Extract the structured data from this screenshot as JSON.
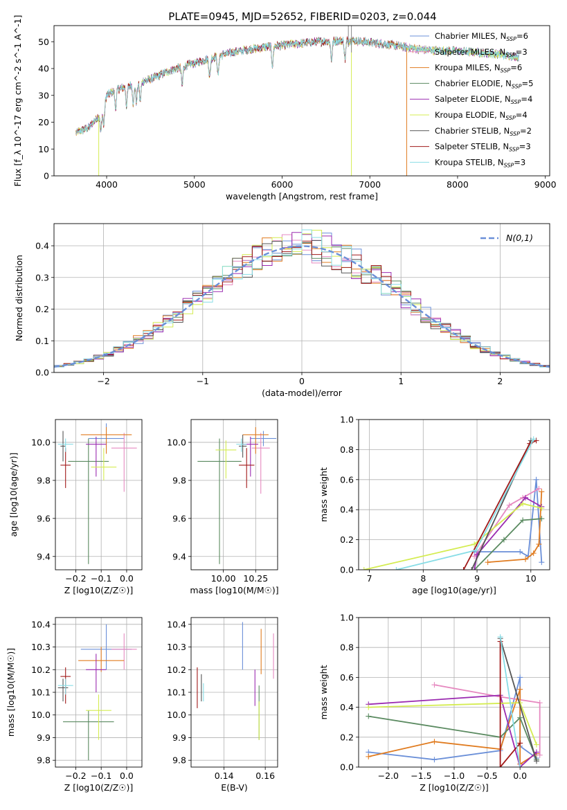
{
  "title": "PLATE=0945, MJD=52652, FIBERID=0203, z=0.044",
  "colors": {
    "chabrier_miles": "#6a8fd8",
    "salpeter_miles": "#e689c0",
    "kroupa_miles": "#e07b1f",
    "chabrier_elodie": "#5a8a60",
    "salpeter_elodie": "#9a2ab0",
    "kroupa_elodie": "#d4ec50",
    "chabrier_stelib": "#555555",
    "salpeter_stelib": "#a01818",
    "kroupa_stelib": "#88dde6",
    "gaussian": "#6a8fd8",
    "grid": "#b0b0b0"
  },
  "legend_labels": [
    "Chabrier MILES, N_SSP=6",
    "Salpeter MILES, N_SSP=3",
    "Kroupa MILES, N_SSP=6",
    "Chabrier ELODIE, N_SSP=5",
    "Salpeter ELODIE, N_SSP=4",
    "Kroupa ELODIE, N_SSP=4",
    "Chabrier STELIB, N_SSP=2",
    "Salpeter STELIB, N_SSP=3",
    "Kroupa STELIB, N_SSP=3"
  ],
  "chart_data": [
    {
      "id": "spectrum",
      "type": "line",
      "xlabel": "wavelength [Angstrom, rest frame]",
      "ylabel": "Flux [f_λ 10^-17 erg cm^-2 s^-1 A^-1]",
      "xlim": [
        3400,
        9050
      ],
      "ylim": [
        0,
        56
      ],
      "xticks": [
        4000,
        5000,
        6000,
        7000,
        8000,
        9000
      ],
      "yticks": [
        0,
        10,
        20,
        30,
        40,
        50
      ],
      "continuum": [
        [
          3650,
          16
        ],
        [
          3800,
          18
        ],
        [
          3950,
          24
        ],
        [
          4000,
          30
        ],
        [
          4100,
          32
        ],
        [
          4300,
          34
        ],
        [
          4500,
          36
        ],
        [
          4700,
          39
        ],
        [
          4900,
          41
        ],
        [
          5100,
          43
        ],
        [
          5300,
          45
        ],
        [
          5500,
          46.5
        ],
        [
          5800,
          48
        ],
        [
          6100,
          49
        ],
        [
          6400,
          50
        ],
        [
          6800,
          50.5
        ],
        [
          7200,
          49
        ],
        [
          7600,
          47
        ],
        [
          8000,
          46.5
        ],
        [
          8400,
          45.5
        ],
        [
          8800,
          44
        ]
      ],
      "model_ranges": [
        [
          3650,
          8700
        ],
        [
          3650,
          8700
        ],
        [
          3650,
          8700
        ],
        [
          3650,
          8700
        ],
        [
          3650,
          8700
        ],
        [
          3650,
          8700
        ],
        [
          3650,
          8700
        ],
        [
          3650,
          7420
        ],
        [
          3650,
          8700
        ]
      ],
      "dropouts": [
        {
          "x": 3910,
          "series": 5
        },
        {
          "x": 6790,
          "series": 5
        },
        {
          "x": 7420,
          "series": 2
        }
      ]
    },
    {
      "id": "residuals",
      "type": "histogram",
      "xlabel": "(data-model)/error",
      "ylabel": "Normed distribution",
      "xlim": [
        -2.5,
        2.5
      ],
      "ylim": [
        0,
        0.47
      ],
      "xticks": [
        -2,
        -1,
        0,
        1,
        2
      ],
      "yticks": [
        0.0,
        0.1,
        0.2,
        0.3,
        0.4
      ],
      "bin_width": 0.1,
      "legend": "N(0,1)",
      "grid": true
    },
    {
      "id": "age-vs-Z",
      "type": "errorbar",
      "xlabel": "Z [log10(Z/Z☉)]",
      "ylabel": "age [log10(age/yr)]",
      "xlim": [
        -0.28,
        0.06
      ],
      "ylim": [
        9.33,
        10.12
      ],
      "xticks": [
        -0.2,
        -0.1,
        0.0
      ],
      "yticks": [
        9.4,
        9.6,
        9.8,
        10.0
      ],
      "points": [
        {
          "x": -0.08,
          "y": 10.02,
          "xerr": 0.07,
          "yerr": [
            0.06,
            0.08
          ]
        },
        {
          "x": -0.01,
          "y": 9.97,
          "xerr": 0.05,
          "yerr": [
            0.23,
            0.08
          ]
        },
        {
          "x": -0.08,
          "y": 10.04,
          "xerr": 0.1,
          "yerr": [
            0.1,
            0.04
          ]
        },
        {
          "x": -0.15,
          "y": 9.9,
          "xerr": 0.08,
          "yerr": [
            0.54,
            0.12
          ]
        },
        {
          "x": -0.12,
          "y": 9.99,
          "xerr": 0.04,
          "yerr": [
            0.17,
            0.04
          ]
        },
        {
          "x": -0.09,
          "y": 9.87,
          "xerr": 0.05,
          "yerr": [
            0.07,
            0.1
          ]
        },
        {
          "x": -0.25,
          "y": 9.98,
          "xerr": 0.01,
          "yerr": [
            0.08,
            0.08
          ]
        },
        {
          "x": -0.24,
          "y": 9.88,
          "xerr": 0.02,
          "yerr": [
            0.12,
            0.09
          ]
        },
        {
          "x": -0.24,
          "y": 9.99,
          "xerr": 0.03,
          "yerr": [
            0.04,
            0.03
          ]
        }
      ]
    },
    {
      "id": "age-vs-mass",
      "type": "errorbar",
      "xlabel": "mass [log10(M/M☉)]",
      "ylabel": "",
      "xlim": [
        9.75,
        10.42
      ],
      "ylim": [
        9.33,
        10.12
      ],
      "xticks": [
        10.0,
        10.25
      ],
      "yticks": [
        9.4,
        9.6,
        9.8,
        10.0
      ],
      "points": [
        {
          "x": 10.31,
          "y": 10.02,
          "xerr": 0.1,
          "yerr": [
            0.04,
            0.04
          ]
        },
        {
          "x": 10.29,
          "y": 9.97,
          "xerr": 0.07,
          "yerr": [
            0.24,
            0.08
          ]
        },
        {
          "x": 10.25,
          "y": 10.04,
          "xerr": 0.1,
          "yerr": [
            0.1,
            0.04
          ]
        },
        {
          "x": 9.97,
          "y": 9.9,
          "xerr": 0.17,
          "yerr": [
            0.54,
            0.12
          ]
        },
        {
          "x": 10.21,
          "y": 9.99,
          "xerr": 0.06,
          "yerr": [
            0.17,
            0.04
          ]
        },
        {
          "x": 10.02,
          "y": 9.96,
          "xerr": 0.08,
          "yerr": [
            0.15,
            0.05
          ]
        },
        {
          "x": 10.15,
          "y": 9.98,
          "xerr": 0.03,
          "yerr": [
            0.06,
            0.06
          ]
        },
        {
          "x": 10.18,
          "y": 9.88,
          "xerr": 0.06,
          "yerr": [
            0.12,
            0.09
          ]
        },
        {
          "x": 10.14,
          "y": 9.99,
          "xerr": 0.04,
          "yerr": [
            0.04,
            0.03
          ]
        }
      ]
    },
    {
      "id": "weight-vs-age",
      "type": "line",
      "xlabel": "age [log10(age/yr)]",
      "ylabel": "mass weight",
      "xlim": [
        6.8,
        10.35
      ],
      "ylim": [
        0,
        1
      ],
      "xticks": [
        7,
        8,
        9,
        10
      ],
      "yticks": [
        0.0,
        0.2,
        0.4,
        0.6,
        0.8,
        1.0
      ],
      "series": [
        {
          "x": [
            8.95,
            9.8,
            9.95,
            10.1,
            10.2
          ],
          "y": [
            0.12,
            0.12,
            0.09,
            0.6,
            0.05
          ]
        },
        {
          "x": [
            8.95,
            9.6,
            9.85,
            10.15
          ],
          "y": [
            0.09,
            0.43,
            0.48,
            0.54
          ]
        },
        {
          "x": [
            9.2,
            9.9,
            10.05,
            10.15,
            10.2
          ],
          "y": [
            0.05,
            0.07,
            0.11,
            0.17,
            0.52
          ]
        },
        {
          "x": [
            8.95,
            9.5,
            9.85,
            10.2
          ],
          "y": [
            0.0,
            0.2,
            0.33,
            0.34
          ]
        },
        {
          "x": [
            8.95,
            9.0,
            9.9,
            10.2
          ],
          "y": [
            0.0,
            0.1,
            0.48,
            0.42
          ]
        },
        {
          "x": [
            6.9,
            8.95,
            9.85,
            10.2
          ],
          "y": [
            0.0,
            0.17,
            0.44,
            0.41
          ]
        },
        {
          "x": [
            8.9,
            10.0
          ],
          "y": [
            0.0,
            0.86
          ]
        },
        {
          "x": [
            8.75,
            9.98,
            10.1
          ],
          "y": [
            0.0,
            0.84,
            0.86
          ]
        },
        {
          "x": [
            7.5,
            8.98,
            10.05
          ],
          "y": [
            0.0,
            0.13,
            0.87
          ]
        }
      ]
    },
    {
      "id": "mass-vs-Z",
      "type": "errorbar",
      "xlabel": "Z [log10(Z/Z☉)]",
      "ylabel": "mass [log10(M/M☉)]",
      "xlim": [
        -0.28,
        0.06
      ],
      "ylim": [
        9.77,
        10.43
      ],
      "xticks": [
        -0.2,
        -0.1,
        0.0
      ],
      "yticks": [
        9.8,
        9.9,
        10.0,
        10.1,
        10.2,
        10.3,
        10.4
      ],
      "points": [
        {
          "x": -0.08,
          "y": 10.29,
          "xerr": 0.1,
          "yerr": [
            0.09,
            0.11
          ]
        },
        {
          "x": -0.01,
          "y": 10.29,
          "xerr": 0.05,
          "yerr": [
            0.09,
            0.07
          ]
        },
        {
          "x": -0.1,
          "y": 10.24,
          "xerr": 0.09,
          "yerr": [
            0.05,
            0.06
          ]
        },
        {
          "x": -0.15,
          "y": 9.97,
          "xerr": 0.1,
          "yerr": [
            0.17,
            0.05
          ]
        },
        {
          "x": -0.12,
          "y": 10.2,
          "xerr": 0.04,
          "yerr": [
            0.1,
            0.07
          ]
        },
        {
          "x": -0.11,
          "y": 10.02,
          "xerr": 0.05,
          "yerr": [
            0.13,
            0.07
          ]
        },
        {
          "x": -0.25,
          "y": 10.12,
          "xerr": 0.02,
          "yerr": [
            0.06,
            0.04
          ]
        },
        {
          "x": -0.24,
          "y": 10.17,
          "xerr": 0.02,
          "yerr": [
            0.12,
            0.04
          ]
        },
        {
          "x": -0.24,
          "y": 10.13,
          "xerr": 0.03,
          "yerr": [
            0.04,
            0.03
          ]
        }
      ]
    },
    {
      "id": "mass-vs-EBV",
      "type": "errorbar",
      "xlabel": "E(B-V)",
      "ylabel": "",
      "xlim": [
        0.124,
        0.166
      ],
      "ylim": [
        9.77,
        10.43
      ],
      "xticks": [
        0.14,
        0.16
      ],
      "yticks": [
        9.8,
        9.9,
        10.0,
        10.1,
        10.2,
        10.3,
        10.4
      ],
      "points": [
        {
          "x": 0.149,
          "y": 10.3,
          "xerr": 0.0,
          "yerr": [
            0.1,
            0.11
          ]
        },
        {
          "x": 0.164,
          "y": 10.26,
          "xerr": 0.0,
          "yerr": [
            0.1,
            0.1
          ]
        },
        {
          "x": 0.158,
          "y": 10.28,
          "xerr": 0.0,
          "yerr": [
            0.1,
            0.1
          ]
        },
        {
          "x": 0.157,
          "y": 10.01,
          "xerr": 0.0,
          "yerr": [
            0.12,
            0.12
          ]
        },
        {
          "x": 0.155,
          "y": 10.12,
          "xerr": 0.0,
          "yerr": [
            0.08,
            0.08
          ]
        },
        {
          "x": 0.157,
          "y": 9.95,
          "xerr": 0.0,
          "yerr": [
            0.06,
            0.11
          ]
        },
        {
          "x": 0.129,
          "y": 10.12,
          "xerr": 0.0,
          "yerr": [
            0.06,
            0.06
          ]
        },
        {
          "x": 0.127,
          "y": 10.12,
          "xerr": 0.0,
          "yerr": [
            0.09,
            0.09
          ]
        },
        {
          "x": 0.13,
          "y": 10.1,
          "xerr": 0.0,
          "yerr": [
            0.04,
            0.04
          ]
        }
      ]
    },
    {
      "id": "weight-vs-Z",
      "type": "line",
      "xlabel": "Z [log10(Z/Z☉)]",
      "ylabel": "mass weight",
      "xlim": [
        -2.45,
        0.45
      ],
      "ylim": [
        0,
        1
      ],
      "xticks": [
        -2.0,
        -1.5,
        -1.0,
        -0.5,
        0.0
      ],
      "yticks": [
        0.0,
        0.2,
        0.4,
        0.6,
        0.8,
        1.0
      ],
      "series": [
        {
          "x": [
            -2.3,
            -1.3,
            -0.3,
            0.0,
            0.0,
            0.25
          ],
          "y": [
            0.1,
            0.05,
            0.11,
            0.6,
            0.14,
            0.06
          ]
        },
        {
          "x": [
            -1.3,
            -0.3,
            0.3,
            0.3
          ],
          "y": [
            0.55,
            0.47,
            0.43,
            0.08
          ]
        },
        {
          "x": [
            -2.3,
            -1.3,
            -0.3,
            0.0,
            0.0,
            0.25
          ],
          "y": [
            0.07,
            0.17,
            0.12,
            0.52,
            0.02,
            0.09
          ]
        },
        {
          "x": [
            -2.3,
            -0.3,
            0.0,
            0.25
          ],
          "y": [
            0.34,
            0.2,
            0.33,
            0.05
          ]
        },
        {
          "x": [
            -2.3,
            -0.3,
            0.0,
            0.25
          ],
          "y": [
            0.42,
            0.48,
            0.0,
            0.1
          ]
        },
        {
          "x": [
            -2.3,
            0.0,
            0.25
          ],
          "y": [
            0.4,
            0.43,
            0.15
          ]
        },
        {
          "x": [
            -0.3,
            0.25
          ],
          "y": [
            0.86,
            0.04
          ]
        },
        {
          "x": [
            -0.3,
            -0.3,
            0.0
          ],
          "y": [
            0.84,
            0.0,
            0.16
          ]
        },
        {
          "x": [
            -0.3,
            0.0
          ],
          "y": [
            0.87,
            0.0
          ]
        }
      ]
    }
  ]
}
